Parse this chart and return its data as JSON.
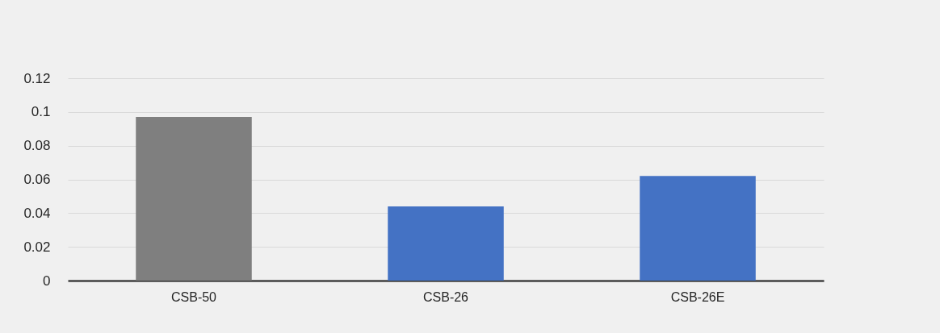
{
  "chart_data": {
    "type": "bar",
    "categories": [
      "CSB-50",
      "CSB-26",
      "CSB-26E"
    ],
    "values": [
      0.097,
      0.044,
      0.062
    ],
    "colors": [
      "#7f7f7f",
      "#4472c4",
      "#4472c4"
    ],
    "ylim": [
      0,
      0.12
    ],
    "yticks": [
      0,
      0.02,
      0.04,
      0.06,
      0.08,
      0.1,
      0.12
    ],
    "grid": "y"
  }
}
